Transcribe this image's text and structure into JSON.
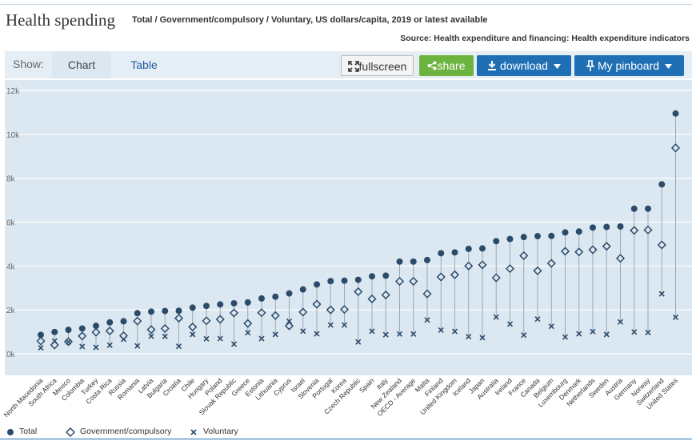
{
  "header": {
    "title": "Health spending",
    "subtitle": "Total / Government/compulsory / Voluntary, US dollars/capita, 2019 or latest available",
    "source": "Source: Health expenditure and financing: Health expenditure indicators"
  },
  "toolbar": {
    "show_label": "Show:",
    "tab_chart": "Chart",
    "tab_table": "Table",
    "fullscreen_label": "fullscreen",
    "share_label": "share",
    "download_label": "download",
    "pinboard_label": "My pinboard",
    "icons": [
      "expand-icon",
      "share-icon",
      "download-icon",
      "pin-icon",
      "caret-down-icon"
    ]
  },
  "legend": {
    "total": "Total",
    "government": "Government/compulsory",
    "voluntary": "Voluntary"
  },
  "colors": {
    "plot_bg": "#dce8f1",
    "marker": "#2b4b6a",
    "accent": "#1f6fb5",
    "share_green": "#6cb33f"
  },
  "chart_data": {
    "type": "scatter",
    "title": "Health spending",
    "ylabel": "US dollars/capita",
    "ylim": [
      0,
      12000
    ],
    "yticks": [
      0,
      2000,
      4000,
      6000,
      8000,
      10000,
      12000
    ],
    "ytick_labels": [
      "0k",
      "2k",
      "4k",
      "6k",
      "8k",
      "10k",
      "12k"
    ],
    "categories": [
      "North Macedonia",
      "South Africa",
      "Mexico",
      "Colombia",
      "Turkey",
      "Costa Rica",
      "Russia",
      "Romania",
      "Latvia",
      "Bulgaria",
      "Croatia",
      "Chile",
      "Hungary",
      "Poland",
      "Slovak Republic",
      "Greece",
      "Estonia",
      "Lithuania",
      "Cyprus",
      "Israel",
      "Slovenia",
      "Portugal",
      "Korea",
      "Czech Republic",
      "Spain",
      "Italy",
      "New Zealand",
      "OECD - Average",
      "Malta",
      "Finland",
      "United Kingdom",
      "Iceland",
      "Japan",
      "Australia",
      "Ireland",
      "France",
      "Canada",
      "Belgium",
      "Luxembourg",
      "Denmark",
      "Netherlands",
      "Sweden",
      "Austria",
      "Germany",
      "Norway",
      "Switzerland",
      "United States"
    ],
    "series": [
      {
        "name": "Total",
        "marker": "circle",
        "values": [
          860,
          990,
          1090,
          1150,
          1270,
          1430,
          1480,
          1850,
          1920,
          1950,
          1960,
          2100,
          2180,
          2250,
          2300,
          2340,
          2520,
          2600,
          2750,
          2930,
          3160,
          3310,
          3330,
          3370,
          3530,
          3560,
          4200,
          4200,
          4270,
          4580,
          4620,
          4780,
          4800,
          5130,
          5230,
          5320,
          5360,
          5370,
          5530,
          5570,
          5750,
          5780,
          5800,
          6610,
          6610,
          7720,
          10950
        ]
      },
      {
        "name": "Government/compulsory",
        "marker": "diamond",
        "values": [
          580,
          400,
          550,
          810,
          980,
          1040,
          820,
          1490,
          1100,
          1150,
          1620,
          1220,
          1500,
          1570,
          1860,
          1380,
          1870,
          1740,
          1270,
          1900,
          2260,
          2000,
          2020,
          2830,
          2500,
          2680,
          3300,
          3300,
          2730,
          3500,
          3600,
          4000,
          4050,
          3460,
          3880,
          4470,
          3780,
          4120,
          4670,
          4640,
          4740,
          4900,
          4350,
          5620,
          5640,
          4960,
          9380
        ]
      },
      {
        "name": "Voluntary",
        "marker": "x",
        "values": [
          270,
          580,
          540,
          330,
          290,
          390,
          660,
          360,
          800,
          790,
          340,
          880,
          680,
          690,
          440,
          960,
          690,
          880,
          1480,
          1030,
          910,
          1310,
          1310,
          540,
          1030,
          870,
          900,
          900,
          1540,
          1080,
          1020,
          780,
          730,
          1670,
          1350,
          850,
          1580,
          1250,
          760,
          910,
          1010,
          880,
          1450,
          990,
          970,
          2730,
          1660
        ]
      }
    ]
  }
}
